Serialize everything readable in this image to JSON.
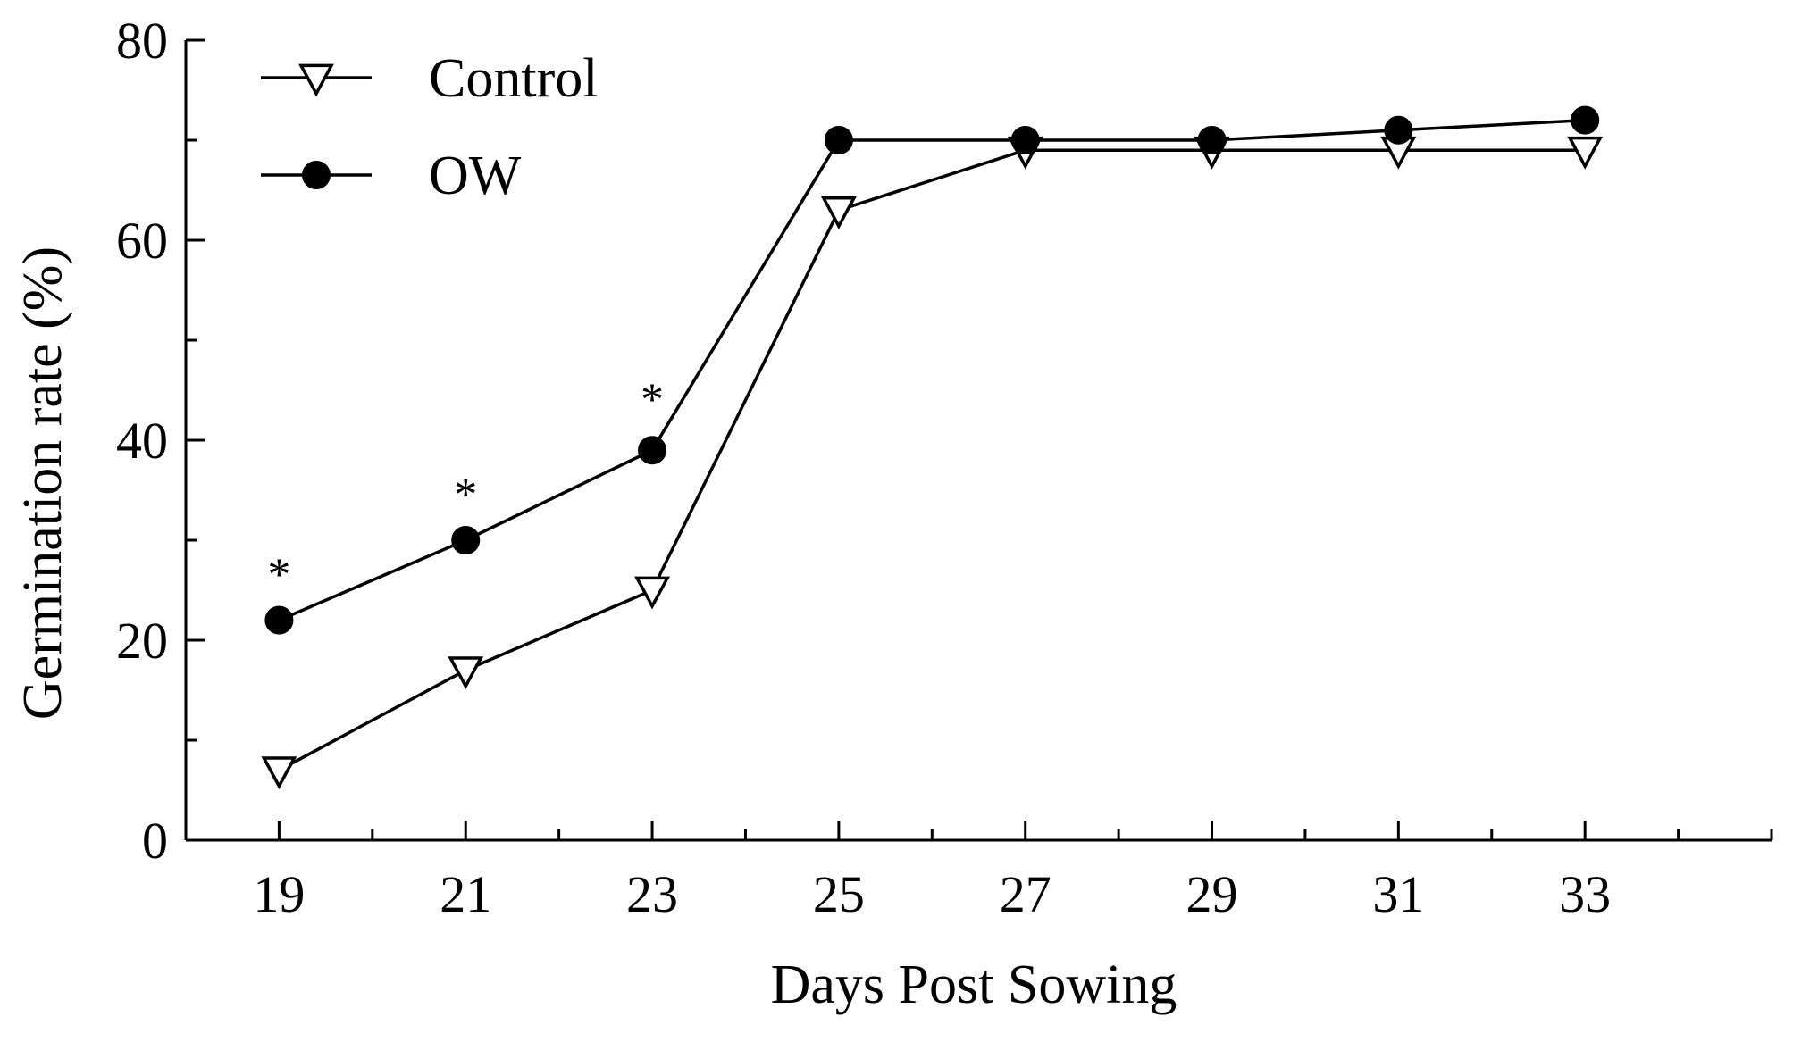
{
  "chart_data": {
    "type": "line",
    "title": "",
    "xlabel": "Days Post Sowing",
    "ylabel": "Germination rate (%)",
    "x": [
      19,
      21,
      23,
      25,
      27,
      29,
      31,
      33
    ],
    "xticks": [
      "19",
      "21",
      "23",
      "25",
      "27",
      "29",
      "31",
      "33"
    ],
    "xlim": [
      18,
      35
    ],
    "ylim": [
      0,
      80
    ],
    "yticks": [
      "0",
      "20",
      "40",
      "60",
      "80"
    ],
    "yticks_values": [
      0,
      20,
      40,
      60,
      80
    ],
    "grid": false,
    "legend_position": "top-left",
    "series": [
      {
        "name": "Control",
        "marker": "open-triangle-down",
        "color": "#000000",
        "values": [
          7,
          17,
          25,
          63,
          69,
          69,
          69,
          69
        ]
      },
      {
        "name": "OW",
        "marker": "filled-circle",
        "color": "#000000",
        "values": [
          22,
          30,
          39,
          70,
          70,
          70,
          71,
          72
        ]
      }
    ],
    "annotations": [
      {
        "text": "*",
        "x": 19,
        "y": 27
      },
      {
        "text": "*",
        "x": 21,
        "y": 35
      },
      {
        "text": "*",
        "x": 23,
        "y": 44.5
      }
    ]
  }
}
